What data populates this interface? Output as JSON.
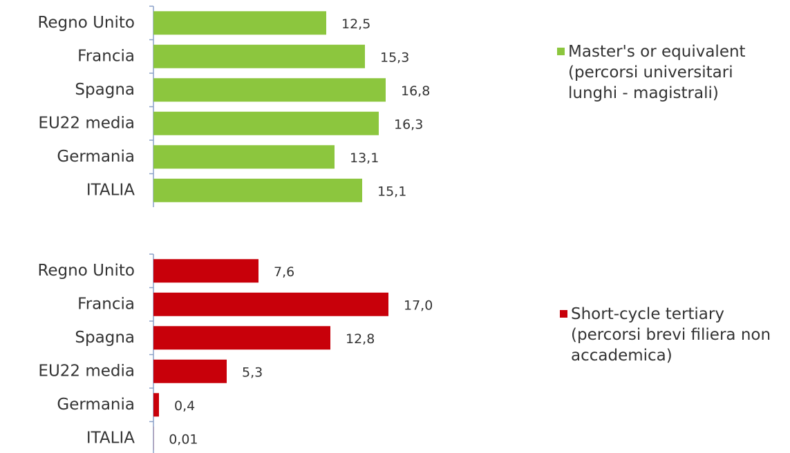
{
  "chart_data": [
    {
      "type": "bar",
      "orientation": "horizontal",
      "categories": [
        "Regno Unito",
        "Francia",
        "Spagna",
        "EU22 media",
        "Germania",
        "ITALIA"
      ],
      "series": [
        {
          "name": "Master's or equivalent (percorsi universitari lunghi - magistrali)",
          "color": "#8cc63e",
          "values": [
            12.5,
            15.3,
            16.8,
            16.3,
            13.1,
            15.1
          ],
          "value_labels": [
            "12,5",
            "15,3",
            "16,8",
            "16,3",
            "13,1",
            "15,1"
          ]
        }
      ],
      "xlim": [
        0,
        20
      ]
    },
    {
      "type": "bar",
      "orientation": "horizontal",
      "categories": [
        "Regno Unito",
        "Francia",
        "Spagna",
        "EU22 media",
        "Germania",
        "ITALIA"
      ],
      "series": [
        {
          "name": "Short-cycle tertiary (percorsi brevi filiera non accademica)",
          "color": "#c8000a",
          "values": [
            7.6,
            17.0,
            12.8,
            5.3,
            0.4,
            0.01
          ],
          "value_labels": [
            "7,6",
            "17,0",
            "12,8",
            "5,3",
            "0,4",
            "0,01"
          ]
        }
      ],
      "xlim": [
        0,
        20
      ]
    }
  ]
}
